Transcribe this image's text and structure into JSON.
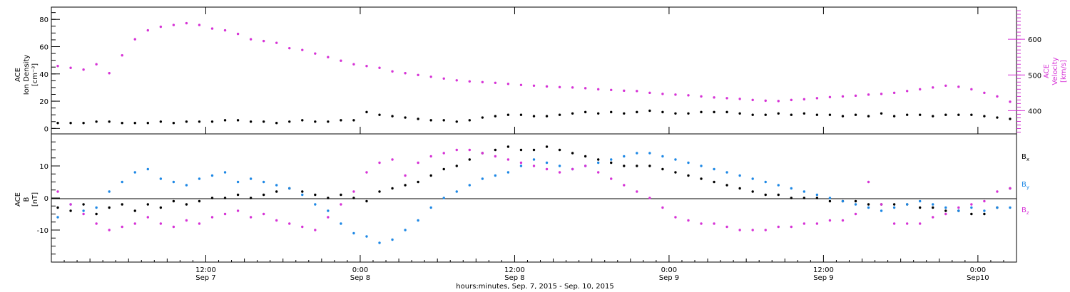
{
  "colors": {
    "black": "#000000",
    "magenta": "#d633d6",
    "blue": "#1e88e5"
  },
  "chart_data": [
    {
      "type": "scatter",
      "panel": "top",
      "x_range_hours": [
        0,
        75
      ],
      "left_axis": {
        "label_lines": [
          "ACE",
          "Ion Density",
          "[cm⁻³]"
        ],
        "ticks": [
          0,
          20,
          40,
          60,
          80
        ],
        "ylim": [
          -4,
          89
        ]
      },
      "right_axis": {
        "label_lines": [
          "ACE",
          "Velocity",
          "[km/s]"
        ],
        "ticks": [
          400,
          500,
          600
        ],
        "ylim": [
          335,
          690
        ]
      },
      "series": [
        {
          "axis": "right",
          "color": "magenta",
          "x": [
            0.5,
            1.5,
            2.5,
            3.5,
            4.5,
            5.5,
            6.5,
            7.5,
            8.5,
            9.5,
            10.5,
            11.5,
            12.5,
            13.5,
            14.5,
            15.5,
            16.5,
            17.5,
            18.5,
            19.5,
            20.5,
            21.5,
            22.5,
            23.5,
            24.5,
            25.5,
            26.5,
            27.5,
            28.5,
            29.5,
            30.5,
            31.5,
            32.5,
            33.5,
            34.5,
            35.5,
            36.5,
            37.5,
            38.5,
            39.5,
            40.5,
            41.5,
            42.5,
            43.5,
            44.5,
            45.5,
            46.5,
            47.5,
            48.5,
            49.5,
            50.5,
            51.5,
            52.5,
            53.5,
            54.5,
            55.5,
            56.5,
            57.5,
            58.5,
            59.5,
            60.5,
            61.5,
            62.5,
            63.5,
            64.5,
            65.5,
            66.5,
            67.5,
            68.5,
            69.5,
            70.5,
            71.5,
            72.5,
            73.5,
            74.5
          ],
          "y": [
            525,
            520,
            515,
            530,
            505,
            555,
            600,
            625,
            635,
            640,
            645,
            640,
            630,
            625,
            615,
            600,
            595,
            590,
            575,
            570,
            560,
            550,
            540,
            530,
            525,
            520,
            510,
            505,
            500,
            495,
            490,
            485,
            482,
            480,
            478,
            475,
            472,
            470,
            468,
            466,
            465,
            463,
            460,
            458,
            456,
            455,
            450,
            447,
            445,
            443,
            440,
            437,
            435,
            433,
            430,
            428,
            427,
            430,
            432,
            435,
            438,
            440,
            442,
            445,
            447,
            450,
            455,
            460,
            465,
            470,
            467,
            460,
            450,
            440,
            425
          ]
        },
        {
          "axis": "left",
          "color": "black",
          "x": [
            0.5,
            1.5,
            2.5,
            3.5,
            4.5,
            5.5,
            6.5,
            7.5,
            8.5,
            9.5,
            10.5,
            11.5,
            12.5,
            13.5,
            14.5,
            15.5,
            16.5,
            17.5,
            18.5,
            19.5,
            20.5,
            21.5,
            22.5,
            23.5,
            24.5,
            25.5,
            26.5,
            27.5,
            28.5,
            29.5,
            30.5,
            31.5,
            32.5,
            33.5,
            34.5,
            35.5,
            36.5,
            37.5,
            38.5,
            39.5,
            40.5,
            41.5,
            42.5,
            43.5,
            44.5,
            45.5,
            46.5,
            47.5,
            48.5,
            49.5,
            50.5,
            51.5,
            52.5,
            53.5,
            54.5,
            55.5,
            56.5,
            57.5,
            58.5,
            59.5,
            60.5,
            61.5,
            62.5,
            63.5,
            64.5,
            65.5,
            66.5,
            67.5,
            68.5,
            69.5,
            70.5,
            71.5,
            72.5,
            73.5,
            74.5
          ],
          "y": [
            4,
            4,
            4,
            5,
            5,
            4,
            4,
            4,
            5,
            4,
            5,
            5,
            5,
            6,
            6,
            5,
            5,
            4,
            5,
            6,
            5,
            5,
            6,
            6,
            12,
            10,
            9,
            8,
            7,
            6,
            6,
            5,
            6,
            8,
            9,
            10,
            10,
            9,
            9,
            10,
            11,
            12,
            11,
            12,
            11,
            12,
            13,
            12,
            11,
            11,
            12,
            12,
            12,
            11,
            10,
            10,
            11,
            10,
            11,
            10,
            10,
            9,
            10,
            9,
            11,
            9,
            10,
            10,
            9,
            10,
            10,
            10,
            9,
            8,
            7
          ]
        }
      ]
    },
    {
      "type": "scatter",
      "panel": "bottom",
      "x_range_hours": [
        0,
        75
      ],
      "left_axis": {
        "label_lines": [
          "ACE",
          "B",
          "[nT]"
        ],
        "ticks": [
          -10,
          0,
          10
        ],
        "ylim": [
          -20,
          20
        ]
      },
      "zero_line": true,
      "legend": [
        {
          "sym": "B",
          "sub": "x",
          "color": "black"
        },
        {
          "sym": "B",
          "sub": "y",
          "color": "blue"
        },
        {
          "sym": "B",
          "sub": "z",
          "color": "magenta"
        }
      ],
      "series": [
        {
          "name": "Bx",
          "color": "black",
          "x": [
            0.5,
            1.5,
            2.5,
            3.5,
            4.5,
            5.5,
            6.5,
            7.5,
            8.5,
            9.5,
            10.5,
            11.5,
            12.5,
            13.5,
            14.5,
            15.5,
            16.5,
            17.5,
            18.5,
            19.5,
            20.5,
            21.5,
            22.5,
            23.5,
            24.5,
            25.5,
            26.5,
            27.5,
            28.5,
            29.5,
            30.5,
            31.5,
            32.5,
            33.5,
            34.5,
            35.5,
            36.5,
            37.5,
            38.5,
            39.5,
            40.5,
            41.5,
            42.5,
            43.5,
            44.5,
            45.5,
            46.5,
            47.5,
            48.5,
            49.5,
            50.5,
            51.5,
            52.5,
            53.5,
            54.5,
            55.5,
            56.5,
            57.5,
            58.5,
            59.5,
            60.5,
            61.5,
            62.5,
            63.5,
            64.5,
            65.5,
            66.5,
            67.5,
            68.5,
            69.5,
            70.5,
            71.5,
            72.5,
            73.5,
            74.5
          ],
          "y": [
            -3,
            -4,
            -2,
            -5,
            -3,
            -2,
            -4,
            -2,
            -3,
            -1,
            -2,
            -1,
            0,
            0,
            1,
            0,
            1,
            2,
            3,
            2,
            1,
            0,
            1,
            0,
            -1,
            2,
            3,
            4,
            5,
            7,
            9,
            10,
            12,
            14,
            15,
            16,
            15,
            15,
            16,
            15,
            14,
            13,
            12,
            11,
            10,
            10,
            10,
            9,
            8,
            7,
            6,
            5,
            4,
            3,
            2,
            1,
            1,
            0,
            0,
            0,
            -1,
            -1,
            -1,
            -2,
            -2,
            -2,
            -2,
            -3,
            -3,
            -4,
            -4,
            -5,
            -5,
            -3,
            3
          ]
        },
        {
          "name": "By",
          "color": "blue",
          "x": [
            0.5,
            1.5,
            2.5,
            3.5,
            4.5,
            5.5,
            6.5,
            7.5,
            8.5,
            9.5,
            10.5,
            11.5,
            12.5,
            13.5,
            14.5,
            15.5,
            16.5,
            17.5,
            18.5,
            19.5,
            20.5,
            21.5,
            22.5,
            23.5,
            24.5,
            25.5,
            26.5,
            27.5,
            28.5,
            29.5,
            30.5,
            31.5,
            32.5,
            33.5,
            34.5,
            35.5,
            36.5,
            37.5,
            38.5,
            39.5,
            40.5,
            41.5,
            42.5,
            43.5,
            44.5,
            45.5,
            46.5,
            47.5,
            48.5,
            49.5,
            50.5,
            51.5,
            52.5,
            53.5,
            54.5,
            55.5,
            56.5,
            57.5,
            58.5,
            59.5,
            60.5,
            61.5,
            62.5,
            63.5,
            64.5,
            65.5,
            66.5,
            67.5,
            68.5,
            69.5,
            70.5,
            71.5,
            72.5,
            73.5,
            74.5
          ],
          "y": [
            -6,
            -2,
            -4,
            -3,
            2,
            5,
            8,
            9,
            6,
            5,
            4,
            6,
            7,
            8,
            5,
            6,
            5,
            4,
            3,
            1,
            -2,
            -4,
            -8,
            -11,
            -12,
            -14,
            -13,
            -10,
            -7,
            -3,
            0,
            2,
            4,
            6,
            7,
            8,
            10,
            12,
            11,
            10,
            9,
            10,
            11,
            12,
            13,
            14,
            14,
            13,
            12,
            11,
            10,
            9,
            8,
            7,
            6,
            5,
            4,
            3,
            2,
            1,
            0,
            -1,
            -2,
            -3,
            -4,
            -3,
            -2,
            -1,
            -2,
            -3,
            -4,
            -3,
            -4,
            -3,
            -3
          ]
        },
        {
          "name": "Bz",
          "color": "magenta",
          "x": [
            0.5,
            1.5,
            2.5,
            3.5,
            4.5,
            5.5,
            6.5,
            7.5,
            8.5,
            9.5,
            10.5,
            11.5,
            12.5,
            13.5,
            14.5,
            15.5,
            16.5,
            17.5,
            18.5,
            19.5,
            20.5,
            21.5,
            22.5,
            23.5,
            24.5,
            25.5,
            26.5,
            27.5,
            28.5,
            29.5,
            30.5,
            31.5,
            32.5,
            33.5,
            34.5,
            35.5,
            36.5,
            37.5,
            38.5,
            39.5,
            40.5,
            41.5,
            42.5,
            43.5,
            44.5,
            45.5,
            46.5,
            47.5,
            48.5,
            49.5,
            50.5,
            51.5,
            52.5,
            53.5,
            54.5,
            55.5,
            56.5,
            57.5,
            58.5,
            59.5,
            60.5,
            61.5,
            62.5,
            63.5,
            64.5,
            65.5,
            66.5,
            67.5,
            68.5,
            69.5,
            70.5,
            71.5,
            72.5,
            73.5,
            74.5
          ],
          "y": [
            2,
            -2,
            -5,
            -8,
            -10,
            -9,
            -8,
            -6,
            -8,
            -9,
            -7,
            -8,
            -6,
            -5,
            -4,
            -6,
            -5,
            -7,
            -8,
            -9,
            -10,
            -6,
            -2,
            2,
            8,
            11,
            12,
            7,
            11,
            13,
            14,
            15,
            15,
            14,
            13,
            12,
            11,
            10,
            9,
            8,
            9,
            10,
            8,
            6,
            4,
            2,
            0,
            -3,
            -6,
            -7,
            -8,
            -8,
            -9,
            -10,
            -10,
            -10,
            -9,
            -9,
            -8,
            -8,
            -7,
            -7,
            -5,
            5,
            -2,
            -8,
            -8,
            -8,
            -6,
            -5,
            -3,
            -2,
            -1,
            2,
            3
          ]
        }
      ]
    }
  ],
  "x_axis": {
    "ticks": [
      {
        "hour": 12,
        "time": "12:00",
        "day": "Sep 7"
      },
      {
        "hour": 24,
        "time": "0:00",
        "day": "Sep 8"
      },
      {
        "hour": 36,
        "time": "12:00",
        "day": "Sep 8"
      },
      {
        "hour": 48,
        "time": "0:00",
        "day": "Sep 9"
      },
      {
        "hour": 60,
        "time": "12:00",
        "day": "Sep 9"
      },
      {
        "hour": 72,
        "time": "0:00",
        "day": "Sep10"
      }
    ],
    "title": "hours:minutes, Sep. 7, 2015 - Sep. 10, 2015"
  }
}
